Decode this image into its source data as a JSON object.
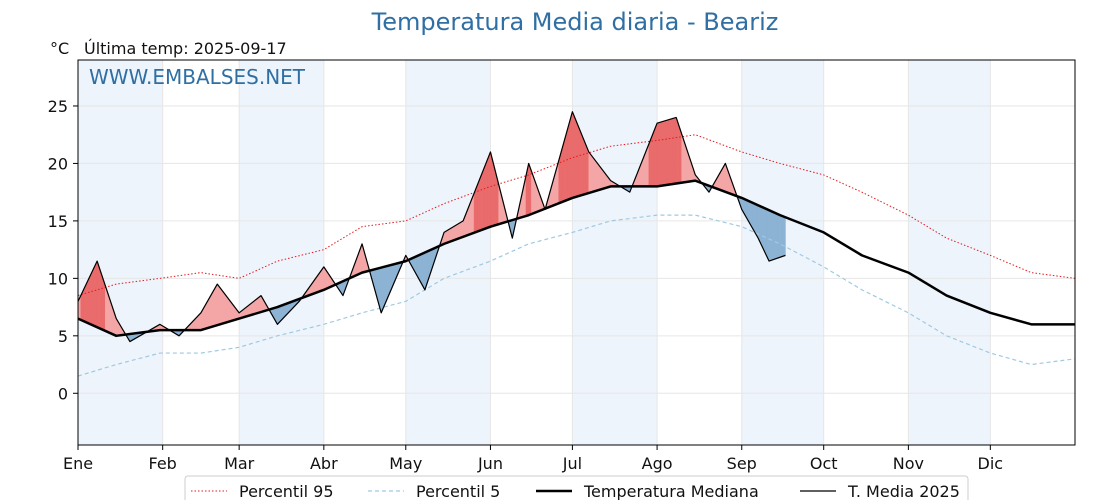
{
  "header": {
    "title": "Temperatura Media diaria - Beariz",
    "unit": "°C",
    "last_temp": "Última temp: 2025-09-17",
    "watermark": "WWW.EMBALSES.NET"
  },
  "colors": {
    "p95": "#e41a1c",
    "p5": "#9ecae1",
    "median": "#000000",
    "current": "#000000",
    "above_fill": "#f4a6a6",
    "above_fill_strong": "#e96b6b",
    "below_fill": "#8cb2d4",
    "month_band": "#eef4fb",
    "title": "#2f6fa3"
  },
  "chart_data": {
    "type": "line",
    "ylim": [
      -4.5,
      29
    ],
    "xlim": [
      1,
      366
    ],
    "y_ticks": [
      0,
      5,
      10,
      15,
      20,
      25
    ],
    "months": [
      {
        "label": "Ene",
        "day": 1
      },
      {
        "label": "Feb",
        "day": 32
      },
      {
        "label": "Mar",
        "day": 60
      },
      {
        "label": "Abr",
        "day": 91
      },
      {
        "label": "May",
        "day": 121
      },
      {
        "label": "Jun",
        "day": 152
      },
      {
        "label": "Jul",
        "day": 182
      },
      {
        "label": "Ago",
        "day": 213
      },
      {
        "label": "Sep",
        "day": 244
      },
      {
        "label": "Oct",
        "day": 274
      },
      {
        "label": "Nov",
        "day": 305
      },
      {
        "label": "Dic",
        "day": 335
      }
    ],
    "grid": true,
    "legend_position": "bottom",
    "series": [
      {
        "name": "Percentil 95",
        "style": "dotted",
        "x": [
          1,
          15,
          31,
          46,
          60,
          74,
          91,
          105,
          121,
          135,
          152,
          166,
          182,
          196,
          213,
          227,
          244,
          258,
          274,
          288,
          305,
          319,
          335,
          350,
          366
        ],
        "y": [
          8.5,
          9.5,
          10.0,
          10.5,
          10.0,
          11.5,
          12.5,
          14.5,
          15.0,
          16.5,
          18.0,
          19.0,
          20.5,
          21.5,
          22.0,
          22.5,
          21.0,
          20.0,
          19.0,
          17.5,
          15.5,
          13.5,
          12.0,
          10.5,
          10.0
        ]
      },
      {
        "name": "Percentil 5",
        "style": "dashed",
        "x": [
          1,
          15,
          31,
          46,
          60,
          74,
          91,
          105,
          121,
          135,
          152,
          166,
          182,
          196,
          213,
          227,
          244,
          258,
          274,
          288,
          305,
          319,
          335,
          350,
          366
        ],
        "y": [
          1.5,
          2.5,
          3.5,
          3.5,
          4.0,
          5.0,
          6.0,
          7.0,
          8.0,
          10.0,
          11.5,
          13.0,
          14.0,
          15.0,
          15.5,
          15.5,
          14.5,
          13.0,
          11.0,
          9.0,
          7.0,
          5.0,
          3.5,
          2.5,
          3.0
        ]
      },
      {
        "name": "Temperatura Mediana",
        "style": "solid-thick",
        "x": [
          1,
          15,
          31,
          46,
          60,
          74,
          91,
          105,
          121,
          135,
          152,
          166,
          182,
          196,
          213,
          227,
          244,
          258,
          274,
          288,
          305,
          319,
          335,
          350,
          366
        ],
        "y": [
          6.5,
          5.0,
          5.5,
          5.5,
          6.5,
          7.5,
          9.0,
          10.5,
          11.5,
          13.0,
          14.5,
          15.5,
          17.0,
          18.0,
          18.0,
          18.5,
          17.0,
          15.5,
          14.0,
          12.0,
          10.5,
          8.5,
          7.0,
          6.0,
          6.0
        ]
      },
      {
        "name": "T. Media 2025",
        "style": "solid",
        "x": [
          1,
          8,
          15,
          20,
          31,
          38,
          46,
          52,
          60,
          68,
          74,
          82,
          91,
          98,
          105,
          112,
          121,
          128,
          135,
          142,
          152,
          160,
          166,
          172,
          182,
          188,
          196,
          203,
          213,
          220,
          227,
          232,
          238,
          244,
          250,
          254,
          260
        ],
        "y": [
          8.0,
          11.5,
          6.5,
          4.5,
          6.0,
          5.0,
          7.0,
          9.5,
          7.0,
          8.5,
          6.0,
          8.0,
          11.0,
          8.5,
          13.0,
          7.0,
          12.0,
          9.0,
          14.0,
          15.0,
          21.0,
          13.5,
          20.0,
          16.0,
          24.5,
          21.0,
          18.5,
          17.5,
          23.5,
          24.0,
          19.0,
          17.5,
          20.0,
          16.0,
          13.5,
          11.5,
          12.0
        ]
      }
    ]
  },
  "legend": [
    {
      "label": "Percentil 95",
      "style": "dotted-red"
    },
    {
      "label": "Percentil 5",
      "style": "dashed-lightblue"
    },
    {
      "label": "Temperatura Mediana",
      "style": "solid-thick-black"
    },
    {
      "label": "T. Media 2025",
      "style": "solid-black"
    }
  ]
}
